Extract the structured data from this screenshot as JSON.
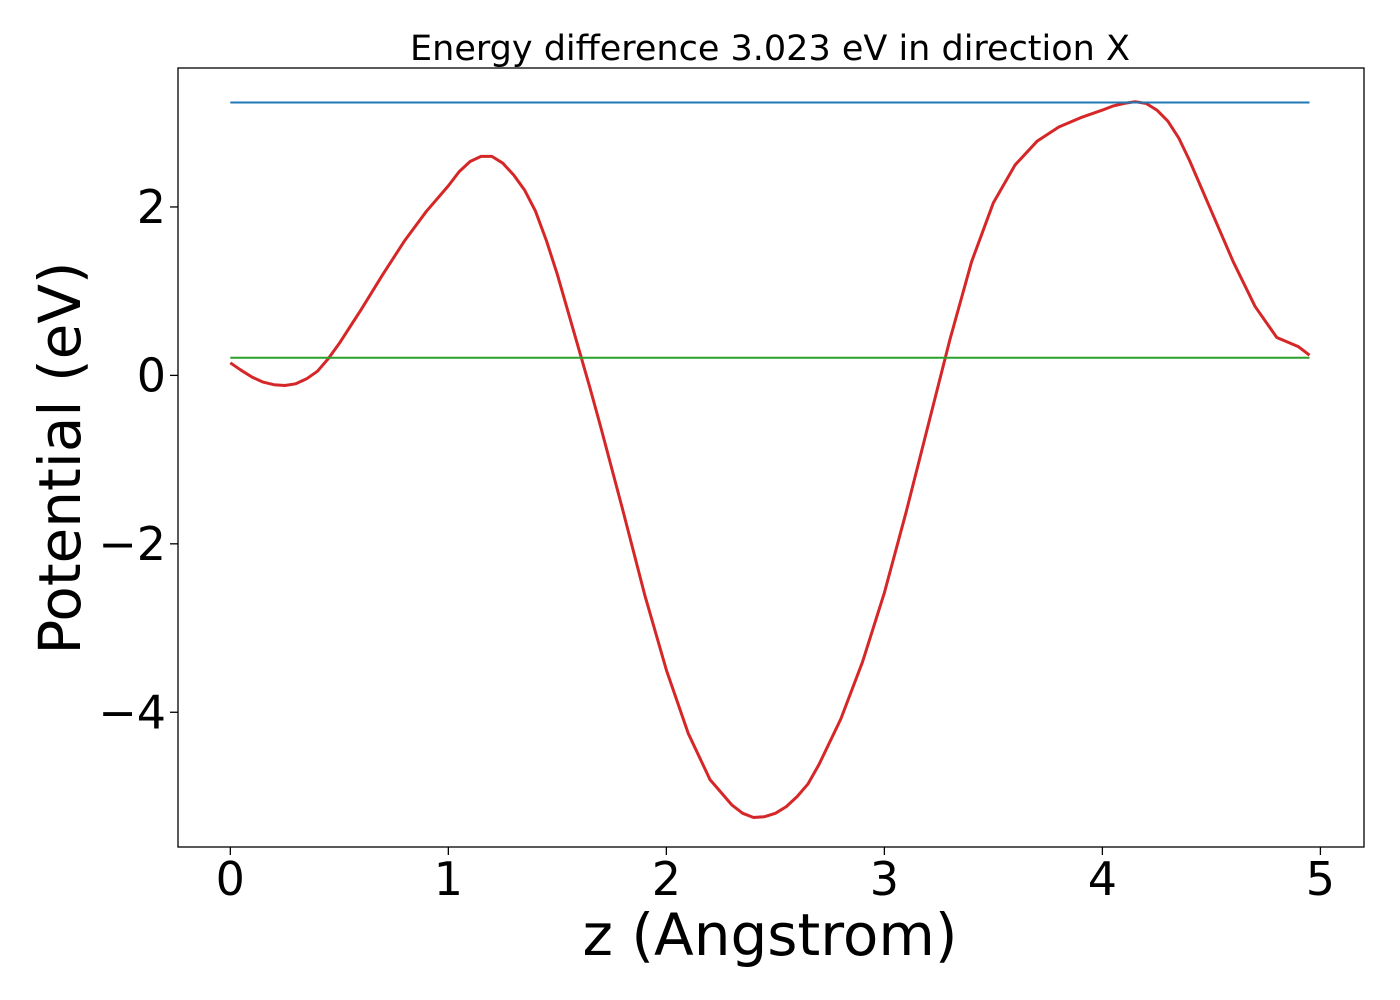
{
  "chart_data": {
    "type": "line",
    "title": "Energy difference 3.023 eV in direction X",
    "xlabel": "z (Angstrom)",
    "ylabel": "Potential (eV)",
    "xlim": [
      -0.24,
      5.2
    ],
    "ylim": [
      -5.6,
      3.65
    ],
    "x_ticks": [
      0,
      1,
      2,
      3,
      4,
      5
    ],
    "x_tick_labels": [
      "0",
      "1",
      "2",
      "3",
      "4",
      "5"
    ],
    "y_ticks": [
      -4,
      -2,
      0,
      2
    ],
    "y_tick_labels": [
      "−4",
      "−2",
      "0",
      "2"
    ],
    "grid": false,
    "legend": false,
    "series": [
      {
        "color": "#d62728",
        "x": [
          0,
          0.05,
          0.1,
          0.15,
          0.2,
          0.25,
          0.3,
          0.35,
          0.4,
          0.45,
          0.5,
          0.55,
          0.6,
          0.7,
          0.8,
          0.9,
          1.0,
          1.05,
          1.1,
          1.15,
          1.2,
          1.25,
          1.3,
          1.35,
          1.4,
          1.45,
          1.5,
          1.55,
          1.6,
          1.65,
          1.7,
          1.8,
          1.9,
          2.0,
          2.1,
          2.2,
          2.3,
          2.35,
          2.4,
          2.45,
          2.5,
          2.55,
          2.6,
          2.65,
          2.7,
          2.8,
          2.9,
          3.0,
          3.1,
          3.2,
          3.3,
          3.4,
          3.5,
          3.6,
          3.7,
          3.8,
          3.9,
          4.0,
          4.05,
          4.1,
          4.15,
          4.2,
          4.25,
          4.3,
          4.35,
          4.4,
          4.5,
          4.6,
          4.7,
          4.8,
          4.9,
          4.95
        ],
        "y": [
          0.15,
          0.06,
          -0.02,
          -0.08,
          -0.11,
          -0.12,
          -0.1,
          -0.04,
          0.05,
          0.2,
          0.38,
          0.58,
          0.78,
          1.2,
          1.6,
          1.95,
          2.25,
          2.42,
          2.54,
          2.6,
          2.6,
          2.52,
          2.38,
          2.2,
          1.95,
          1.6,
          1.2,
          0.75,
          0.3,
          -0.15,
          -0.62,
          -1.6,
          -2.6,
          -3.5,
          -4.25,
          -4.8,
          -5.1,
          -5.2,
          -5.25,
          -5.24,
          -5.2,
          -5.12,
          -5.0,
          -4.85,
          -4.62,
          -4.08,
          -3.4,
          -2.58,
          -1.62,
          -0.6,
          0.42,
          1.35,
          2.05,
          2.5,
          2.78,
          2.95,
          3.06,
          3.15,
          3.2,
          3.23,
          3.25,
          3.23,
          3.15,
          3.02,
          2.82,
          2.55,
          1.95,
          1.35,
          0.82,
          0.45,
          0.34,
          0.24
        ]
      },
      {
        "color": "#1f77b4",
        "x": [
          0,
          4.95
        ],
        "y": [
          3.24,
          3.24
        ]
      },
      {
        "color": "#2ca02c",
        "x": [
          0,
          4.95
        ],
        "y": [
          0.21,
          0.21
        ]
      }
    ]
  }
}
